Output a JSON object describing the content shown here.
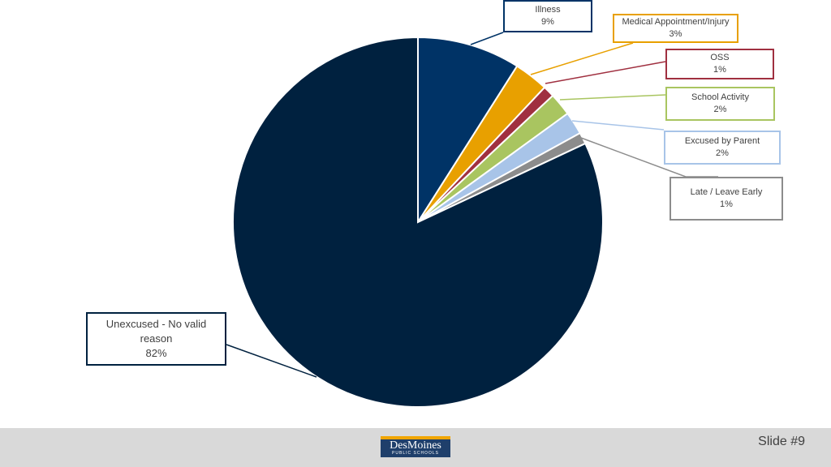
{
  "chart_data": {
    "type": "pie",
    "title": "",
    "start_angle_deg": 0,
    "direction": "clockwise",
    "slices": [
      {
        "label": "Illness",
        "value": 9,
        "display": "9%",
        "color": "#003366",
        "label_lines": [
          "Illness"
        ]
      },
      {
        "label": "Medical Appointment/Injury",
        "value": 3,
        "display": "3%",
        "color": "#e8a000",
        "label_lines": [
          "Medical Appointment/Injury"
        ]
      },
      {
        "label": "OSS",
        "value": 1,
        "display": "1%",
        "color": "#a03040",
        "label_lines": [
          "OSS"
        ]
      },
      {
        "label": "School Activity",
        "value": 2,
        "display": "2%",
        "color": "#a9c560",
        "label_lines": [
          "School Activity"
        ]
      },
      {
        "label": "Excused by Parent",
        "value": 2,
        "display": "2%",
        "color": "#a8c4e8",
        "label_lines": [
          "Excused by Parent"
        ]
      },
      {
        "label": "Late / Leave Early",
        "value": 1,
        "display": "1%",
        "color": "#8c8c8c",
        "label_lines": [
          "Late / Leave Early"
        ]
      },
      {
        "label": "Unexcused - No valid reason",
        "value": 82,
        "display": "82%",
        "color": "#00213f",
        "label_lines": [
          "Unexcused - No valid",
          "reason"
        ]
      }
    ]
  },
  "footer": {
    "logo_name": "DesMoines",
    "logo_sub": "PUBLIC SCHOOLS",
    "slide_number": "Slide #9"
  }
}
